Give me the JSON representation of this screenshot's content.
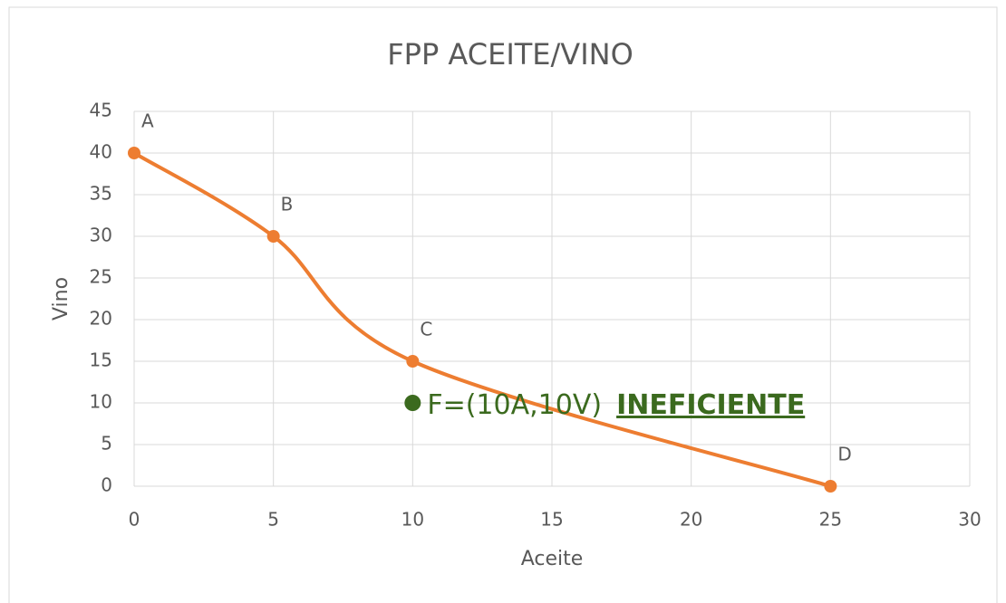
{
  "chart_data": {
    "type": "line",
    "title": "FPP ACEITE/VINO",
    "xlabel": "Aceite",
    "ylabel": "Vino",
    "series": [
      {
        "color": "#ed7d31",
        "x": [
          0,
          5,
          10,
          25
        ],
        "values": [
          40,
          30,
          15,
          0
        ],
        "point_labels": [
          "A",
          "B",
          "C",
          "D"
        ]
      }
    ],
    "xlim": [
      0,
      30
    ],
    "xticks": [
      0,
      5,
      10,
      15,
      20,
      25,
      30
    ],
    "ylim": [
      0,
      45
    ],
    "yticks": [
      0,
      5,
      10,
      15,
      20,
      25,
      30,
      35,
      40,
      45
    ],
    "grid": true,
    "smooth": true,
    "annotation": {
      "text": "F=(10A,10V)",
      "emphasis": "INEFICIENTE",
      "x": 10,
      "y": 10,
      "color": "#3b6a1e"
    }
  }
}
